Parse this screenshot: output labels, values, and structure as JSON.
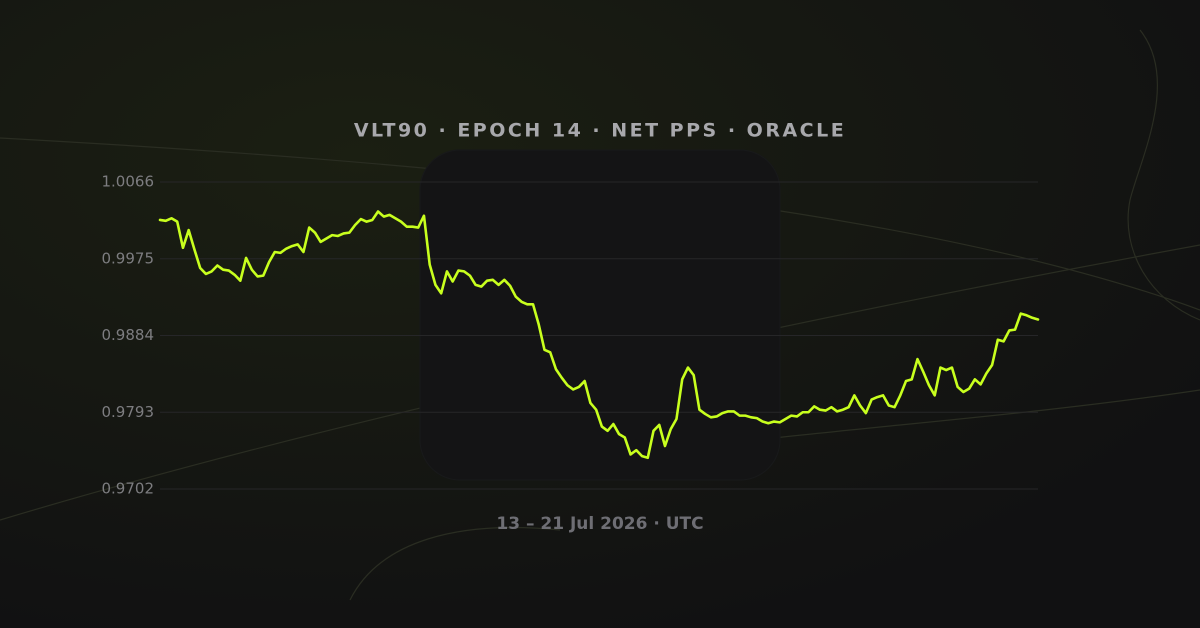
{
  "chart_data": {
    "type": "line",
    "title": "VLT90 · EPOCH 14 · NET PPS · ORACLE",
    "xlabel": "13 – 21 Jul 2026 · UTC",
    "ylim": [
      0.9702,
      1.0066
    ],
    "yticks": [
      1.0066,
      0.9975,
      0.9884,
      0.9793,
      0.9702
    ],
    "grid": true,
    "color": "#c8ff1e",
    "values": [
      1.0021,
      1.002,
      1.0023,
      1.0019,
      0.9988,
      1.0009,
      0.9986,
      0.9964,
      0.9957,
      0.996,
      0.9967,
      0.9962,
      0.9961,
      0.9956,
      0.9949,
      0.9976,
      0.9962,
      0.9954,
      0.9955,
      0.9971,
      0.9983,
      0.9982,
      0.9987,
      0.999,
      0.9992,
      0.9983,
      1.0012,
      1.0006,
      0.9995,
      0.9999,
      1.0003,
      1.0002,
      1.0005,
      1.0006,
      1.0015,
      1.0022,
      1.0019,
      1.0021,
      1.0031,
      1.0025,
      1.0027,
      1.0023,
      1.0019,
      1.0013,
      1.0013,
      1.0012,
      1.0026,
      0.9968,
      0.9944,
      0.9934,
      0.996,
      0.9948,
      0.9961,
      0.996,
      0.9955,
      0.9944,
      0.9942,
      0.9949,
      0.995,
      0.9944,
      0.995,
      0.9943,
      0.993,
      0.9924,
      0.9921,
      0.9921,
      0.9897,
      0.9867,
      0.9864,
      0.9844,
      0.9834,
      0.9825,
      0.982,
      0.9823,
      0.983,
      0.9804,
      0.9796,
      0.9776,
      0.9771,
      0.9779,
      0.9767,
      0.9763,
      0.9743,
      0.9748,
      0.9741,
      0.9739,
      0.9771,
      0.9778,
      0.9753,
      0.9773,
      0.9785,
      0.9832,
      0.9846,
      0.9837,
      0.9796,
      0.9791,
      0.9787,
      0.9788,
      0.9792,
      0.9794,
      0.9794,
      0.9789,
      0.9789,
      0.9787,
      0.9786,
      0.9782,
      0.978,
      0.9782,
      0.9781,
      0.9785,
      0.9789,
      0.9788,
      0.9793,
      0.9793,
      0.98,
      0.9796,
      0.9795,
      0.9799,
      0.9794,
      0.9796,
      0.9799,
      0.9813,
      0.9801,
      0.9792,
      0.9808,
      0.9811,
      0.9813,
      0.9801,
      0.9799,
      0.9813,
      0.983,
      0.9832,
      0.9856,
      0.9841,
      0.9825,
      0.9813,
      0.9846,
      0.9843,
      0.9846,
      0.9823,
      0.9817,
      0.9821,
      0.9832,
      0.9826,
      0.9839,
      0.9849,
      0.9879,
      0.9877,
      0.989,
      0.9891,
      0.991,
      0.9908,
      0.9905,
      0.9903
    ]
  }
}
